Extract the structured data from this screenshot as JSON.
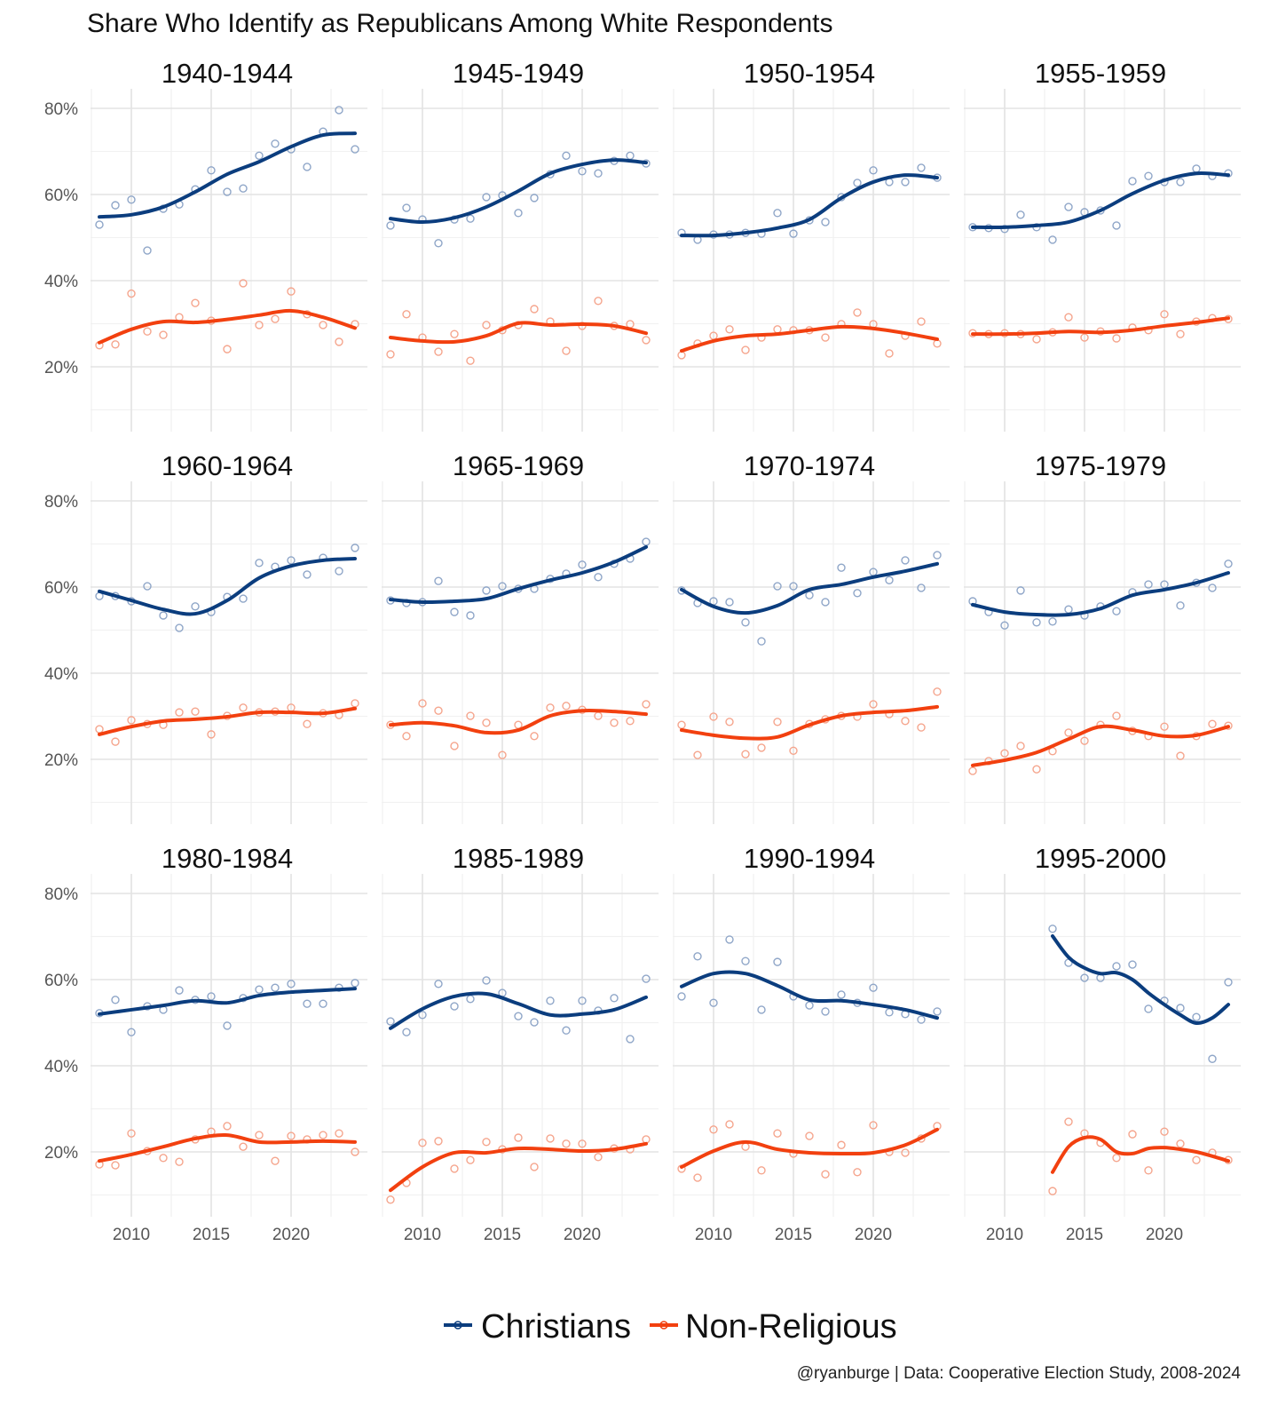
{
  "chart_data": {
    "type": "line",
    "title": "Share Who Identify as Republicans Among White Respondents",
    "xlabel": "",
    "ylabel": "",
    "xlim": [
      2007.5,
      2024.8
    ],
    "ylim": [
      5,
      84
    ],
    "yticks": [
      {
        "value": 20,
        "label": "20%"
      },
      {
        "value": 40,
        "label": "40%"
      },
      {
        "value": 60,
        "label": "60%"
      },
      {
        "value": 80,
        "label": "80%"
      }
    ],
    "xticks": [
      {
        "value": 2010,
        "label": "2010"
      },
      {
        "value": 2015,
        "label": "2015"
      },
      {
        "value": 2020,
        "label": "2020"
      }
    ],
    "grid": true,
    "legend": {
      "placement": "bottom",
      "entries": [
        {
          "name": "Christians",
          "color": "#0b3d7e"
        },
        {
          "name": "Non-Religious",
          "color": "#f2400f"
        }
      ]
    },
    "caption": "@ryanburge | Data: Cooperative Election Study, 2008-2024",
    "panels": [
      {
        "title": "1940-1944",
        "start": 2008,
        "christians": [
          53,
          57.5,
          58.8,
          47,
          56.7,
          57.7,
          61.2,
          65.6,
          60.6,
          61.4,
          69,
          71.8,
          70.5,
          66.4,
          74.6,
          79.6,
          70.5
        ],
        "christians_smooth": {
          "x": [
            2008,
            2010,
            2012,
            2014,
            2016,
            2018,
            2020,
            2022,
            2024
          ],
          "y": [
            54.8,
            55.3,
            57.1,
            60.6,
            64.7,
            67.6,
            71.1,
            73.8,
            74.2
          ]
        },
        "nonreligious": [
          25,
          25.2,
          37,
          28.2,
          27.4,
          31.5,
          34.8,
          30.7,
          24.1,
          39.4,
          29.7,
          31.1,
          37.5,
          32.2,
          29.7,
          25.8,
          29.9
        ],
        "nonreligious_smooth": {
          "x": [
            2008,
            2010,
            2012,
            2014,
            2016,
            2018,
            2020,
            2022,
            2024
          ],
          "y": [
            25.6,
            28.7,
            30.5,
            30.3,
            31,
            32,
            33,
            31.5,
            29
          ]
        }
      },
      {
        "title": "1945-1949",
        "start": 2008,
        "christians": [
          52.8,
          56.9,
          54.2,
          48.7,
          54.2,
          54.4,
          59.4,
          59.8,
          55.7,
          59.2,
          64.7,
          69,
          65.4,
          64.9,
          67.8,
          69,
          67.2
        ],
        "christians_smooth": {
          "x": [
            2008,
            2010,
            2012,
            2014,
            2016,
            2018,
            2020,
            2022,
            2024
          ],
          "y": [
            54.4,
            53.6,
            54.6,
            57.1,
            60.8,
            64.9,
            67,
            68,
            67.4
          ]
        },
        "nonreligious": [
          22.9,
          32.2,
          26.8,
          23.5,
          27.6,
          21.4,
          29.7,
          28.5,
          29.7,
          33.4,
          30.5,
          23.7,
          29.5,
          35.3,
          29.5,
          29.9,
          26.2
        ],
        "nonreligious_smooth": {
          "x": [
            2008,
            2010,
            2012,
            2014,
            2016,
            2018,
            2020,
            2022,
            2024
          ],
          "y": [
            26.8,
            26,
            25.8,
            27.2,
            30.1,
            29.7,
            29.9,
            29.5,
            27.8
          ]
        }
      },
      {
        "title": "1950-1954",
        "start": 2008,
        "christians": [
          51.1,
          49.5,
          50.7,
          50.7,
          51.1,
          50.9,
          55.7,
          50.9,
          54,
          53.6,
          59.4,
          62.7,
          65.6,
          62.9,
          62.9,
          66.2,
          63.9
        ],
        "christians_smooth": {
          "x": [
            2008,
            2010,
            2012,
            2014,
            2016,
            2018,
            2020,
            2022,
            2024
          ],
          "y": [
            50.5,
            50.5,
            51.1,
            52.2,
            54.2,
            59.2,
            62.9,
            64.5,
            63.9
          ]
        },
        "nonreligious": [
          22.7,
          25.4,
          27.2,
          28.7,
          23.9,
          26.8,
          28.7,
          28.5,
          28.5,
          26.8,
          29.9,
          32.6,
          29.9,
          23.1,
          27.2,
          30.5,
          25.4
        ],
        "nonreligious_smooth": {
          "x": [
            2008,
            2010,
            2012,
            2014,
            2016,
            2018,
            2020,
            2022,
            2024
          ],
          "y": [
            23.7,
            26,
            27.2,
            27.6,
            28.5,
            29.3,
            28.9,
            27.8,
            26.4
          ]
        }
      },
      {
        "title": "1955-1959",
        "start": 2008,
        "christians": [
          52.4,
          52.2,
          52,
          55.3,
          52.4,
          49.5,
          57.1,
          55.9,
          56.3,
          52.8,
          63.1,
          64.3,
          62.9,
          62.9,
          66,
          64.3,
          64.9
        ],
        "christians_smooth": {
          "x": [
            2008,
            2010,
            2012,
            2014,
            2016,
            2018,
            2020,
            2022,
            2024
          ],
          "y": [
            52.4,
            52.4,
            52.8,
            53.6,
            56.3,
            60.2,
            63.3,
            64.9,
            64.5
          ]
        },
        "nonreligious": [
          27.8,
          27.6,
          27.8,
          27.6,
          26.4,
          28,
          31.5,
          26.8,
          28.2,
          26.6,
          29.1,
          28.5,
          32.2,
          27.6,
          30.5,
          31.3,
          31.1
        ],
        "nonreligious_smooth": {
          "x": [
            2008,
            2010,
            2012,
            2014,
            2016,
            2018,
            2020,
            2022,
            2024
          ],
          "y": [
            27.6,
            27.6,
            27.8,
            28.2,
            28,
            28.5,
            29.5,
            30.3,
            31.3
          ]
        }
      },
      {
        "title": "1960-1964",
        "start": 2008,
        "christians": [
          57.9,
          57.9,
          56.7,
          60.2,
          53.4,
          50.5,
          55.5,
          54.2,
          57.7,
          57.3,
          65.6,
          64.7,
          66.2,
          62.9,
          66.8,
          63.7,
          69.1
        ],
        "christians_smooth": {
          "x": [
            2008,
            2010,
            2012,
            2014,
            2016,
            2018,
            2020,
            2022,
            2024
          ],
          "y": [
            59,
            56.9,
            54.8,
            53.8,
            56.9,
            62.1,
            64.9,
            66.2,
            66.6
          ]
        },
        "nonreligious": [
          27,
          24.1,
          29.1,
          28.2,
          28,
          30.9,
          31.1,
          25.8,
          30.1,
          32,
          30.9,
          31.1,
          32,
          28.2,
          30.7,
          30.3,
          33
        ],
        "nonreligious_smooth": {
          "x": [
            2008,
            2010,
            2012,
            2014,
            2016,
            2018,
            2020,
            2022,
            2024
          ],
          "y": [
            25.8,
            27.6,
            28.9,
            29.3,
            29.9,
            30.9,
            30.9,
            30.7,
            31.8
          ]
        }
      },
      {
        "title": "1965-1969",
        "start": 2008,
        "christians": [
          56.9,
          56.3,
          56.5,
          61.4,
          54.2,
          53.4,
          59.2,
          60.2,
          59.6,
          59.6,
          61.9,
          63.1,
          65.2,
          62.3,
          65.4,
          66.6,
          70.5
        ],
        "christians_smooth": {
          "x": [
            2008,
            2010,
            2012,
            2014,
            2016,
            2018,
            2020,
            2022,
            2024
          ],
          "y": [
            57.1,
            56.5,
            56.7,
            57.3,
            59.6,
            61.6,
            63.3,
            65.8,
            69.3
          ]
        },
        "nonreligious": [
          28,
          25.4,
          33,
          31.3,
          23.1,
          30.1,
          28.5,
          21,
          28,
          25.4,
          32,
          32.4,
          31.5,
          30.1,
          28.5,
          28.9,
          32.8
        ],
        "nonreligious_smooth": {
          "x": [
            2008,
            2010,
            2012,
            2014,
            2016,
            2018,
            2020,
            2022,
            2024
          ],
          "y": [
            28,
            28.5,
            27.8,
            26.2,
            26.8,
            30.1,
            31.3,
            31.1,
            30.5
          ]
        }
      },
      {
        "title": "1970-1974",
        "start": 2008,
        "christians": [
          59.2,
          56.3,
          56.7,
          56.5,
          51.8,
          47.4,
          60.2,
          60.2,
          58.1,
          56.5,
          64.5,
          58.6,
          63.5,
          61.6,
          66.2,
          59.8,
          67.4
        ],
        "christians_smooth": {
          "x": [
            2008,
            2010,
            2012,
            2014,
            2016,
            2018,
            2020,
            2022,
            2024
          ],
          "y": [
            59.4,
            55.5,
            54,
            55.7,
            59.4,
            60.6,
            62.3,
            63.7,
            65.4
          ]
        },
        "nonreligious": [
          28,
          21,
          29.9,
          28.7,
          21.2,
          22.7,
          28.7,
          22,
          28.2,
          29.3,
          30.1,
          29.9,
          32.8,
          30.5,
          28.9,
          27.4,
          35.7
        ],
        "nonreligious_smooth": {
          "x": [
            2008,
            2010,
            2012,
            2014,
            2016,
            2018,
            2020,
            2022,
            2024
          ],
          "y": [
            26.8,
            25.6,
            24.9,
            25.2,
            28,
            30.1,
            30.9,
            31.3,
            32.2
          ]
        }
      },
      {
        "title": "1975-1979",
        "start": 2008,
        "christians": [
          56.7,
          54.2,
          51.1,
          59.2,
          51.8,
          52,
          54.8,
          53.4,
          55.5,
          54.4,
          58.8,
          60.6,
          60.6,
          55.7,
          61,
          59.8,
          65.4
        ],
        "christians_smooth": {
          "x": [
            2008,
            2010,
            2012,
            2014,
            2016,
            2018,
            2020,
            2022,
            2024
          ],
          "y": [
            55.9,
            54.2,
            53.6,
            53.6,
            55,
            58.1,
            59.4,
            61,
            63.3
          ]
        },
        "nonreligious": [
          17.3,
          19.6,
          21.4,
          23.1,
          17.7,
          21.9,
          26.2,
          24.3,
          28,
          30.1,
          26.6,
          25.4,
          27.6,
          20.8,
          25.4,
          28.2,
          27.8
        ],
        "nonreligious_smooth": {
          "x": [
            2008,
            2010,
            2012,
            2014,
            2016,
            2018,
            2020,
            2022,
            2024
          ],
          "y": [
            18.6,
            19.8,
            21.6,
            24.7,
            27.6,
            26.8,
            25.4,
            25.6,
            27.6
          ]
        }
      },
      {
        "title": "1980-1984",
        "start": 2008,
        "christians": [
          52.2,
          55.3,
          47.8,
          53.8,
          53,
          57.5,
          55.3,
          56.1,
          49.3,
          55.7,
          57.7,
          58.1,
          59,
          54.4,
          54.4,
          58.1,
          59.2
        ],
        "christians_smooth": {
          "x": [
            2008,
            2010,
            2012,
            2014,
            2016,
            2018,
            2020,
            2022,
            2024
          ],
          "y": [
            52,
            53,
            54,
            55.1,
            54.6,
            56.3,
            57.1,
            57.5,
            57.9
          ]
        },
        "nonreligious": [
          17.1,
          16.9,
          24.3,
          20.2,
          18.6,
          17.7,
          22.9,
          24.7,
          26,
          21.2,
          23.9,
          17.9,
          23.7,
          22.9,
          23.9,
          24.3,
          20
        ],
        "nonreligious_smooth": {
          "x": [
            2008,
            2010,
            2012,
            2014,
            2016,
            2018,
            2020,
            2022,
            2024
          ],
          "y": [
            17.9,
            19.4,
            21.2,
            23.1,
            23.9,
            22.3,
            22.3,
            22.5,
            22.3
          ]
        }
      },
      {
        "title": "1985-1989",
        "start": 2008,
        "christians": [
          50.3,
          47.8,
          51.8,
          59,
          53.8,
          55.5,
          59.8,
          56.9,
          51.5,
          50.1,
          55.1,
          48.2,
          55.1,
          52.8,
          55.7,
          46.2,
          60.2
        ],
        "christians_smooth": {
          "x": [
            2008,
            2010,
            2012,
            2014,
            2016,
            2018,
            2020,
            2022,
            2024
          ],
          "y": [
            48.7,
            53.2,
            56.1,
            56.7,
            54.4,
            51.8,
            52,
            53,
            55.9
          ]
        },
        "nonreligious": [
          8.9,
          12.8,
          22.1,
          22.5,
          16.1,
          18.1,
          22.3,
          20.6,
          23.3,
          16.5,
          23.1,
          21.9,
          21.9,
          18.8,
          20.8,
          20.6,
          22.9
        ],
        "nonreligious_smooth": {
          "x": [
            2008,
            2010,
            2012,
            2014,
            2016,
            2018,
            2020,
            2022,
            2024
          ],
          "y": [
            11.1,
            16.5,
            19.8,
            19.8,
            20.8,
            20.6,
            20.2,
            20.6,
            21.9
          ]
        }
      },
      {
        "title": "1990-1994",
        "start": 2008,
        "christians": [
          56.1,
          65.4,
          54.6,
          69.3,
          64.3,
          53,
          64.1,
          56.1,
          54,
          52.6,
          56.5,
          54.6,
          58.1,
          52.4,
          52,
          50.7,
          52.6
        ],
        "christians_smooth": {
          "x": [
            2008,
            2010,
            2012,
            2014,
            2016,
            2018,
            2020,
            2022,
            2024
          ],
          "y": [
            58.4,
            61.4,
            61.4,
            58.6,
            55.3,
            55.1,
            54.2,
            53,
            51.1
          ]
        },
        "nonreligious": [
          16.1,
          14,
          25.2,
          26.4,
          21.2,
          15.7,
          24.3,
          19.6,
          23.7,
          14.8,
          21.6,
          15.3,
          26.2,
          20,
          19.8,
          23.1,
          26
        ],
        "nonreligious_smooth": {
          "x": [
            2008,
            2010,
            2012,
            2014,
            2016,
            2018,
            2020,
            2022,
            2024
          ],
          "y": [
            16.5,
            20.2,
            22.3,
            20.6,
            19.8,
            19.6,
            19.8,
            21.6,
            25.2
          ]
        }
      },
      {
        "title": "1995-2000",
        "start": 2013,
        "christians": [
          71.8,
          63.9,
          60.4,
          60.4,
          63.1,
          63.5,
          53.2,
          55.1,
          53.4,
          51.3,
          41.6,
          59.4
        ],
        "christians_smooth": {
          "x": [
            2013,
            2014,
            2015,
            2016,
            2017,
            2018,
            2019,
            2020,
            2021,
            2022,
            2023,
            2024
          ],
          "y": [
            70.1,
            65.2,
            62.7,
            61.4,
            61.6,
            60,
            56.9,
            54.2,
            51.8,
            49.9,
            51.1,
            54.2
          ]
        },
        "nonreligious": [
          10.9,
          27,
          24.3,
          22.1,
          18.6,
          24.1,
          15.7,
          24.7,
          21.9,
          18.1,
          19.8,
          18.1
        ],
        "nonreligious_smooth": {
          "x": [
            2013,
            2014,
            2015,
            2016,
            2017,
            2018,
            2019,
            2020,
            2021,
            2022,
            2023,
            2024
          ],
          "y": [
            15.3,
            21.2,
            23.3,
            22.9,
            20,
            19.6,
            20.8,
            21,
            20.6,
            20,
            19,
            17.9
          ]
        }
      }
    ]
  }
}
